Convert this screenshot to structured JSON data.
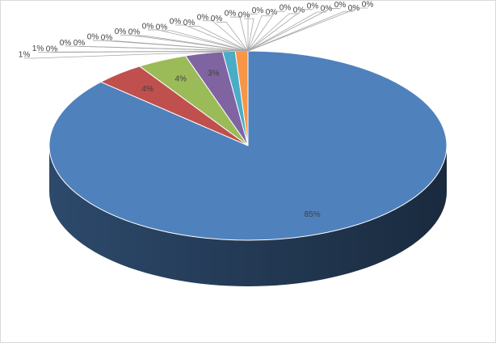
{
  "chart_data": {
    "type": "pie",
    "values": [
      85,
      4,
      4,
      3,
      1,
      1,
      0,
      0,
      0,
      0,
      0,
      0,
      0,
      0,
      0,
      0,
      0,
      0,
      0,
      0,
      0,
      0,
      0,
      0,
      0,
      0,
      0,
      0,
      0,
      0
    ],
    "value_labels": [
      "85%",
      "4%",
      "4%",
      "3%",
      "1%",
      "1%",
      "0%",
      "0%",
      "0%",
      "0%",
      "0%",
      "0%",
      "0%",
      "0%",
      "0%",
      "0%",
      "0%",
      "0%",
      "0%",
      "0%",
      "0%",
      "0%",
      "0%",
      "0%",
      "0%",
      "0%",
      "0%",
      "0%",
      "0%",
      "0%"
    ],
    "colors": [
      "#4f81bd",
      "#c0504d",
      "#9bbb59",
      "#8064a2",
      "#4bacc6",
      "#f79646",
      "#2c4d75",
      "#772c2a",
      "#5f7530",
      "#4d3b62",
      "#276a7c",
      "#b65708",
      "#729aca",
      "#cd7371",
      "#afc97a",
      "#9983b5",
      "#6fbdd1",
      "#f9ab6b",
      "#3a679c",
      "#9e3b38",
      "#7e9c40",
      "#664f83",
      "#358ea6",
      "#f27b1a",
      "#95b3d7",
      "#d99694",
      "#c3d69b",
      "#b2a2c7",
      "#93cddd",
      "#fac090"
    ]
  }
}
